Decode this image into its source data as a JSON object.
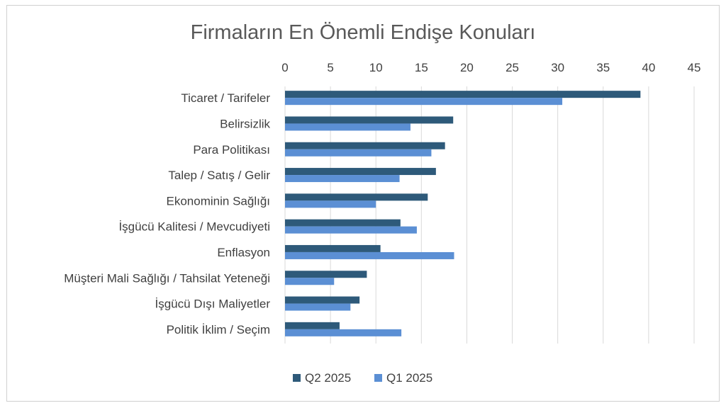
{
  "chart_data": {
    "type": "bar",
    "orientation": "horizontal",
    "title": "Firmaların En Önemli Endişe Konuları",
    "categories": [
      "Ticaret / Tarifeler",
      "Belirsizlik",
      "Para Politikası",
      "Talep / Satış / Gelir",
      "Ekonominin Sağlığı",
      "İşgücü Kalitesi / Mevcudiyeti",
      "Enflasyon",
      "Müşteri Mali Sağlığı / Tahsilat Yeteneği",
      "İşgücü Dışı Maliyetler",
      "Politik İklim / Seçim"
    ],
    "series": [
      {
        "name": "Q2 2025",
        "color": "#2e5a7a",
        "values": [
          39.1,
          18.5,
          17.6,
          16.6,
          15.7,
          12.7,
          10.5,
          9.0,
          8.2,
          6.0
        ]
      },
      {
        "name": "Q1 2025",
        "color": "#5b8fd4",
        "values": [
          30.5,
          13.8,
          16.1,
          12.6,
          10.0,
          14.5,
          18.6,
          5.4,
          7.2,
          12.8
        ]
      }
    ],
    "xlim": [
      0,
      45
    ],
    "ticks": [
      "0",
      "5",
      "10",
      "15",
      "20",
      "25",
      "30",
      "35",
      "40",
      "45"
    ],
    "grid": true,
    "axis_position": "top",
    "legend": "bottom"
  }
}
